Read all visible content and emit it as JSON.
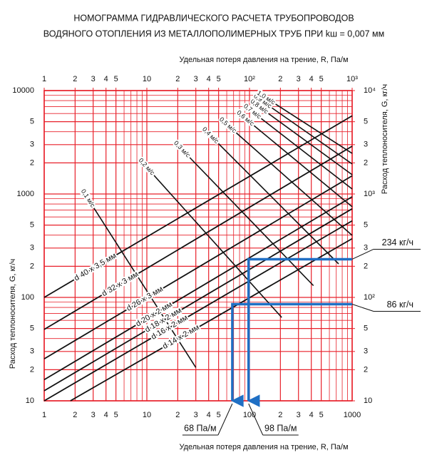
{
  "chart_data": {
    "type": "line",
    "title": [
      "НОМОГРАММА ГИДРАВЛИЧЕСКОГО РАСЧЕТА ТРУБОПРОВОДОВ",
      "ВОДЯНОГО ОТОПЛЕНИЯ ИЗ МЕТАЛЛОПОЛИМЕРНЫХ ТРУБ ПРИ kш = 0,007 мм"
    ],
    "xlabel": "Удельная потеря давления на трение, R, Па/м",
    "x2label": "Удельная потеря давления на трение, R, Па/м",
    "ylabel": "Расход теплоносителя, G, кг/ч",
    "y2label": "Расход теплоносителя, G, кг/ч",
    "log_x": true,
    "log_y": true,
    "grid": true,
    "grid_color": "#e8202a",
    "line_color": "#111111",
    "guide_color": "#1f6fc4",
    "xlim": [
      1,
      1000
    ],
    "ylim": [
      10,
      10000
    ],
    "xticks": [
      1,
      2,
      3,
      4,
      5,
      10,
      {
        "value": 20,
        "label": "2"
      },
      {
        "value": 30,
        "label": "3"
      },
      {
        "value": 40,
        "label": "4"
      },
      {
        "value": 50,
        "label": "5"
      },
      100,
      {
        "value": 200,
        "label": "2"
      },
      {
        "value": 300,
        "label": "3"
      },
      {
        "value": 400,
        "label": "4"
      },
      {
        "value": 500,
        "label": "5"
      },
      1000
    ],
    "x2ticks": [
      1,
      2,
      3,
      4,
      5,
      10,
      {
        "value": 20,
        "label": "2"
      },
      {
        "value": 30,
        "label": "3"
      },
      {
        "value": 40,
        "label": "4"
      },
      {
        "value": 50,
        "label": "5"
      },
      {
        "value": 100,
        "label": "10²"
      },
      {
        "value": 200,
        "label": "2"
      },
      {
        "value": 300,
        "label": "3"
      },
      {
        "value": 400,
        "label": "4"
      },
      {
        "value": 500,
        "label": "5"
      },
      {
        "value": 1000,
        "label": "10³"
      }
    ],
    "yticks": [
      10,
      {
        "value": 20,
        "label": "2"
      },
      {
        "value": 30,
        "label": "3"
      },
      {
        "value": 50,
        "label": "5"
      },
      100,
      {
        "value": 200,
        "label": "2"
      },
      {
        "value": 300,
        "label": "3"
      },
      {
        "value": 500,
        "label": "5"
      },
      1000,
      {
        "value": 2000,
        "label": "2"
      },
      {
        "value": 3000,
        "label": "3"
      },
      {
        "value": 5000,
        "label": "5"
      },
      10000
    ],
    "y2ticks": [
      10,
      {
        "value": 20,
        "label": "2"
      },
      {
        "value": 30,
        "label": "3"
      },
      {
        "value": 50,
        "label": "5"
      },
      {
        "value": 100,
        "label": "10²"
      },
      {
        "value": 200,
        "label": "2"
      },
      {
        "value": 300,
        "label": "3"
      },
      {
        "value": 500,
        "label": "5"
      },
      {
        "value": 1000,
        "label": "10³"
      },
      {
        "value": 2000,
        "label": "2"
      },
      {
        "value": 3000,
        "label": "3"
      },
      {
        "value": 5000,
        "label": "5"
      },
      {
        "value": 10000,
        "label": "10⁴"
      }
    ],
    "xminor": [
      6,
      7,
      8,
      9,
      60,
      70,
      80,
      90,
      600,
      700,
      800,
      900
    ],
    "yminor": [
      40,
      60,
      70,
      80,
      90,
      400,
      600,
      700,
      800,
      900,
      4000,
      6000,
      7000,
      8000,
      9000
    ],
    "series": [
      {
        "name": "d 40 x 3,5 мм",
        "x": [
          1,
          1000
        ],
        "y": [
          100,
          5700
        ]
      },
      {
        "name": "d 32 x 3 мм",
        "x": [
          1,
          1000
        ],
        "y": [
          49,
          2900
        ]
      },
      {
        "name": "d 26 x 3 мм",
        "x": [
          1,
          1000
        ],
        "y": [
          25.5,
          1500
        ]
      },
      {
        "name": "d 20 x 2 мм",
        "x": [
          1,
          1000
        ],
        "y": [
          16,
          940
        ]
      },
      {
        "name": "d 18 x 2 мм",
        "x": [
          1,
          1000
        ],
        "y": [
          12.5,
          720
        ]
      },
      {
        "name": "d 16 x 2 мм",
        "x": [
          1,
          1000
        ],
        "y": [
          10,
          550
        ]
      },
      {
        "name": "d 14 x 2 мм",
        "x": [
          1.8,
          1000
        ],
        "y": [
          10,
          370
        ]
      }
    ],
    "velocity": [
      {
        "name": "0,1 м/с",
        "x": [
          3,
          30
        ],
        "y": [
          750,
          21
        ]
      },
      {
        "name": "0,2 м/с",
        "x": [
          11.5,
          206
        ],
        "y": [
          1550,
          64
        ]
      },
      {
        "name": "0,3 м/с",
        "x": [
          25.6,
          420
        ],
        "y": [
          2300,
          130
        ]
      },
      {
        "name": "0,4 м/с",
        "x": [
          48.7,
          738
        ],
        "y": [
          3140,
          211
        ]
      },
      {
        "name": "0,5 м/с",
        "x": [
          72.6,
          1000
        ],
        "y": [
          3980,
          398
        ]
      },
      {
        "name": "0,6 м/с",
        "x": [
          108,
          1000
        ],
        "y": [
          4670,
          752
        ]
      },
      {
        "name": "0,7 м/с",
        "x": [
          127,
          1000
        ],
        "y": [
          5470,
          1117
        ]
      },
      {
        "name": "0,8 м/с",
        "x": [
          149,
          1000
        ],
        "y": [
          6110,
          1535
        ]
      },
      {
        "name": "0,9 м/с",
        "x": [
          161,
          1000
        ],
        "y": [
          6930,
          1950
        ]
      },
      {
        "name": "1,0 м/с",
        "x": [
          175,
          1000
        ],
        "y": [
          7520,
          2470
        ]
      }
    ],
    "guides": [
      {
        "x": [
          1000,
          98,
          98
        ],
        "y": [
          234,
          234,
          10
        ],
        "g_label": "234 кг/ч",
        "r_label": "98 Па/м"
      },
      {
        "x": [
          1000,
          68,
          68
        ],
        "y": [
          86,
          86,
          10
        ],
        "g_label": "86 кг/ч",
        "r_label": "68 Па/м"
      }
    ]
  }
}
